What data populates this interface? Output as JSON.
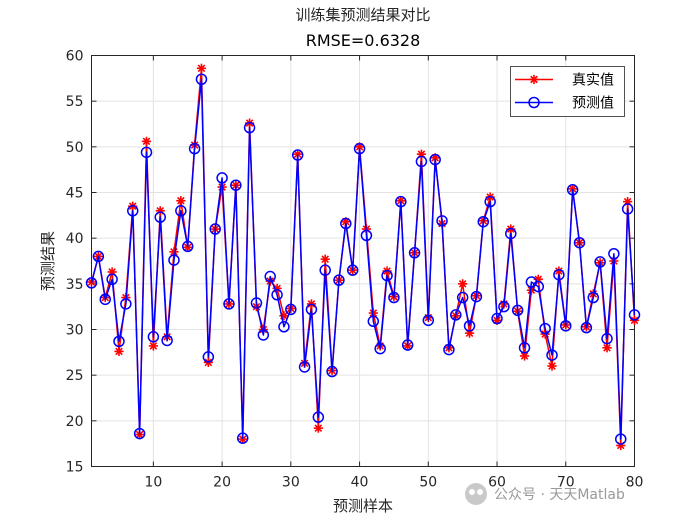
{
  "chart_data": {
    "type": "line",
    "title": "训练集预测结果对比",
    "subtitle": "RMSE=0.6328",
    "xlabel": "预测样本",
    "ylabel": "预测结果",
    "xlim": [
      1,
      80
    ],
    "ylim": [
      15,
      60
    ],
    "xticks": [
      10,
      20,
      30,
      40,
      50,
      60,
      70,
      80
    ],
    "yticks": [
      15,
      20,
      25,
      30,
      35,
      40,
      45,
      50,
      55,
      60
    ],
    "grid": true,
    "legend_position": "top-right",
    "x": [
      1,
      2,
      3,
      4,
      5,
      6,
      7,
      8,
      9,
      10,
      11,
      12,
      13,
      14,
      15,
      16,
      17,
      18,
      19,
      20,
      21,
      22,
      23,
      24,
      25,
      26,
      27,
      28,
      29,
      30,
      31,
      32,
      33,
      34,
      35,
      36,
      37,
      38,
      39,
      40,
      41,
      42,
      43,
      44,
      45,
      46,
      47,
      48,
      49,
      50,
      51,
      52,
      53,
      54,
      55,
      56,
      57,
      58,
      59,
      60,
      61,
      62,
      63,
      64,
      65,
      66,
      67,
      68,
      69,
      70,
      71,
      72,
      73,
      74,
      75,
      76,
      77,
      78,
      79,
      80
    ],
    "series": [
      {
        "name": "真实值",
        "color": "#ff0000",
        "marker": "asterisk",
        "values": [
          35.2,
          38.0,
          33.5,
          36.3,
          27.6,
          33.5,
          43.5,
          18.5,
          50.6,
          28.2,
          43.0,
          29.2,
          38.5,
          44.1,
          39.0,
          50.2,
          58.6,
          26.4,
          41.0,
          45.6,
          32.8,
          45.8,
          18.0,
          52.6,
          32.5,
          30.0,
          35.3,
          34.5,
          31.5,
          32.3,
          49.2,
          26.3,
          32.8,
          19.2,
          37.7,
          25.5,
          35.4,
          41.8,
          36.5,
          50.0,
          41.0,
          31.8,
          28.2,
          36.4,
          33.6,
          44.1,
          28.2,
          38.4,
          49.2,
          31.3,
          48.8,
          41.6,
          28.0,
          31.5,
          35.0,
          29.6,
          33.7,
          41.9,
          44.5,
          31.0,
          32.8,
          41.0,
          32.0,
          27.1,
          34.3,
          35.5,
          29.5,
          26.0,
          36.4,
          30.5,
          45.4,
          39.5,
          30.3,
          33.9,
          37.3,
          28.0,
          37.5,
          17.3,
          44.0,
          31.0
        ]
      },
      {
        "name": "预测值",
        "color": "#0000ff",
        "marker": "circle",
        "values": [
          35.1,
          38.0,
          33.3,
          35.5,
          28.7,
          32.8,
          43.0,
          18.6,
          49.4,
          29.2,
          42.3,
          28.8,
          37.6,
          43.0,
          39.1,
          49.8,
          57.4,
          27.0,
          41.0,
          46.6,
          32.8,
          45.8,
          18.1,
          52.1,
          32.9,
          29.4,
          35.8,
          33.8,
          30.3,
          32.2,
          49.1,
          25.9,
          32.2,
          20.4,
          36.5,
          25.4,
          35.4,
          41.6,
          36.5,
          49.8,
          40.3,
          30.9,
          27.9,
          35.9,
          33.5,
          44.0,
          28.3,
          38.4,
          48.4,
          31.0,
          48.6,
          41.9,
          27.8,
          31.6,
          33.5,
          30.4,
          33.6,
          41.8,
          44.0,
          31.2,
          32.5,
          40.5,
          32.1,
          28.0,
          35.2,
          34.7,
          30.1,
          27.2,
          36.0,
          30.4,
          45.3,
          39.5,
          30.2,
          33.5,
          37.4,
          29.0,
          38.3,
          18.0,
          43.2,
          31.6
        ]
      }
    ]
  },
  "watermark": "公众号 · 天天Matlab"
}
